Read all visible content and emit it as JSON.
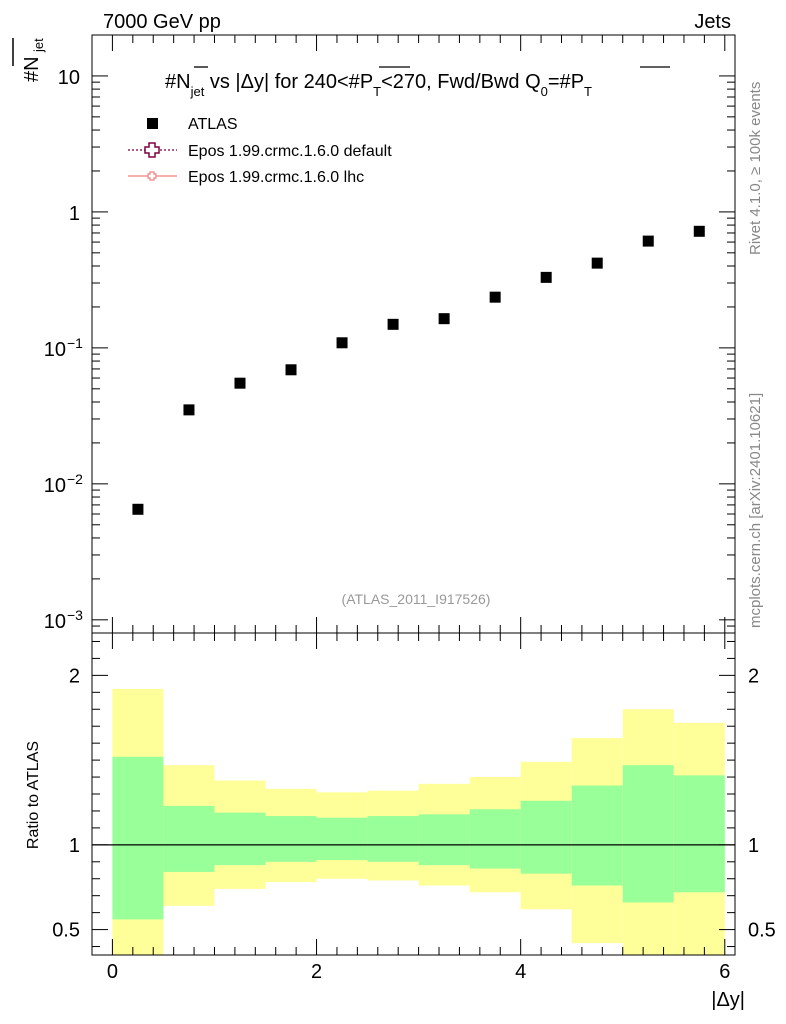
{
  "header": {
    "left": "7000 GeV pp",
    "right": "Jets"
  },
  "side_labels": {
    "rivet": "Rivet 4.1.0, ≥ 100k events",
    "mcplots": "mcplots.cern.ch [arXiv:2401.10621]"
  },
  "watermark": "(ATLAS_2011_I917526)",
  "colors": {
    "data": "#000000",
    "band_outer": "#ffff99",
    "band_inner": "#99ff99",
    "mc_default": "#800040",
    "mc_lhc": "#f08080"
  },
  "chart_data": [
    {
      "type": "scatter",
      "title": "#N_jet vs |Δy| for 240<#P_T<270, Fwd/Bwd Q0=#P_T",
      "title_parts": {
        "a": "#N",
        "a_sub": "jet",
        "b": " vs |Δy|  for 240<#",
        "c": "P",
        "c_sub": "T",
        "d": "<270, Fwd/Bwd Q",
        "d_sub": "0",
        "e": "=#",
        "f": "P",
        "f_sub": "T"
      },
      "ylabel": {
        "main": "#N",
        "sub": "jet"
      },
      "yscale": "log",
      "ylim": [
        0.0008,
        20
      ],
      "xlim": [
        -0.2,
        6.1
      ],
      "yticks": [
        {
          "v": 10,
          "m": "10",
          "e": ""
        },
        {
          "v": 1,
          "m": "1",
          "e": ""
        },
        {
          "v": 0.1,
          "m": "10",
          "e": "−1"
        },
        {
          "v": 0.01,
          "m": "10",
          "e": "−2"
        },
        {
          "v": 0.001,
          "m": "10",
          "e": "−3"
        }
      ],
      "legend": [
        {
          "label": "ATLAS",
          "marker": "square"
        },
        {
          "label": "Epos 1.99.crmc.1.6.0 default",
          "marker": "open-cross"
        },
        {
          "label": "Epos 1.99.crmc.1.6.0 lhc",
          "marker": "small-cross"
        }
      ],
      "series": [
        {
          "name": "ATLAS",
          "x": [
            0.25,
            0.75,
            1.25,
            1.75,
            2.25,
            2.75,
            3.25,
            3.75,
            4.25,
            4.75,
            5.25,
            5.75
          ],
          "y": [
            0.0065,
            0.035,
            0.055,
            0.069,
            0.109,
            0.149,
            0.164,
            0.236,
            0.33,
            0.42,
            0.61,
            0.72
          ]
        }
      ]
    },
    {
      "type": "area",
      "ylabel": "Ratio to ATLAS",
      "xlabel": "|Δy|",
      "ylim": [
        0.35,
        2.25
      ],
      "xlim": [
        -0.2,
        6.1
      ],
      "xticks": [
        {
          "v": 0,
          "l": "0"
        },
        {
          "v": 2,
          "l": "2"
        },
        {
          "v": 4,
          "l": "4"
        },
        {
          "v": 6,
          "l": "6"
        }
      ],
      "yticks": [
        {
          "v": 2,
          "l": "2"
        },
        {
          "v": 1,
          "l": "1"
        },
        {
          "v": 0.5,
          "l": "0.5"
        }
      ],
      "bins": [
        0,
        0.5,
        1,
        1.5,
        2,
        2.5,
        3,
        3.5,
        4,
        4.5,
        5,
        5.5,
        6
      ],
      "outer_low": [
        0.35,
        0.64,
        0.74,
        0.78,
        0.8,
        0.79,
        0.76,
        0.72,
        0.62,
        0.42,
        0.35,
        0.35
      ],
      "outer_high": [
        1.92,
        1.47,
        1.38,
        1.33,
        1.31,
        1.32,
        1.36,
        1.4,
        1.49,
        1.63,
        1.8,
        1.72
      ],
      "inner_low": [
        0.56,
        0.84,
        0.88,
        0.9,
        0.91,
        0.9,
        0.88,
        0.86,
        0.83,
        0.76,
        0.66,
        0.72
      ],
      "inner_high": [
        1.52,
        1.23,
        1.19,
        1.17,
        1.16,
        1.17,
        1.18,
        1.21,
        1.26,
        1.35,
        1.47,
        1.41
      ],
      "reference": 1
    }
  ]
}
